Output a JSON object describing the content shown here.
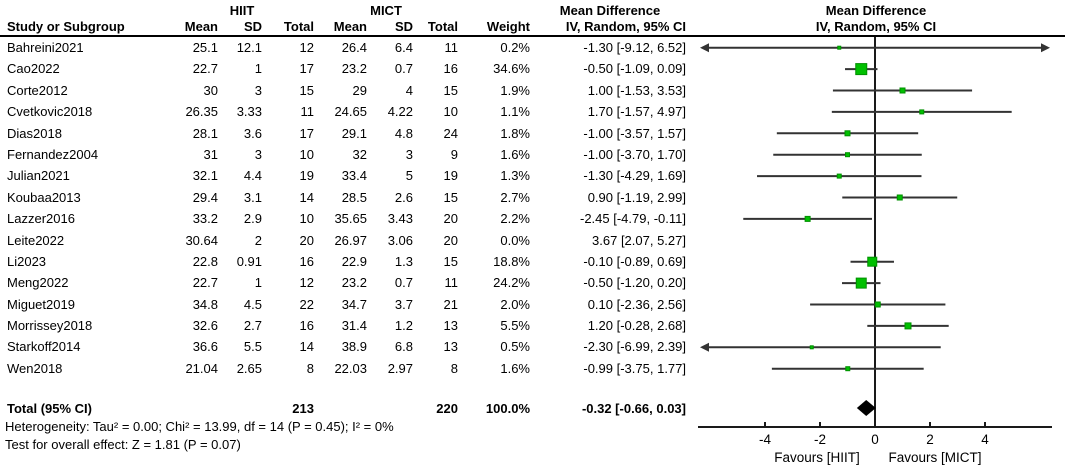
{
  "header": {
    "group1": "HIIT",
    "group2": "MICT",
    "effect_title": "Mean Difference",
    "effect_subtitle": "IV, Random, 95% CI",
    "plot_title": "Mean Difference",
    "plot_subtitle": "IV, Random, 95% CI",
    "columns": {
      "study": "Study or Subgroup",
      "mean1": "Mean",
      "sd1": "SD",
      "total1": "Total",
      "mean2": "Mean",
      "sd2": "SD",
      "total2": "Total",
      "weight": "Weight",
      "ci": "IV, Random, 95% CI"
    }
  },
  "total_row": {
    "label": "Total (95% CI)",
    "total1": "213",
    "total2": "220",
    "weight": "100.0%",
    "ci_text": "-0.32 [-0.66, 0.03]"
  },
  "footer": {
    "heterogeneity": "Heterogeneity: Tau² = 0.00; Chi² = 13.99, df = 14 (P = 0.45); I² = 0%",
    "overall_effect": "Test for overall effect: Z = 1.81 (P = 0.07)"
  },
  "chart_data": {
    "type": "forest",
    "title": "Mean Difference",
    "subtitle": "IV, Random, 95% CI",
    "xlabel_left": "Favours [HIIT]",
    "xlabel_right": "Favours [MICT]",
    "axis": {
      "ticks": [
        -4,
        -2,
        0,
        2,
        4
      ],
      "visible_range": [
        -6.36,
        6.36
      ],
      "grid": false
    },
    "colors": {
      "marker": "#00c000",
      "marker_edge": "#009000",
      "line": "#333333",
      "diamond": "#000000",
      "axis": "#1a1a1a"
    },
    "studies": [
      {
        "label": "Bahreini2021",
        "mean1": "25.1",
        "sd1": "12.1",
        "total1": "12",
        "mean2": "26.4",
        "sd2": "6.4",
        "total2": "11",
        "weight": "0.2%",
        "ci_text": "-1.30 [-9.12, 6.52]",
        "md": -1.3,
        "lo": -9.12,
        "hi": 6.52,
        "size": 3,
        "plotted": true
      },
      {
        "label": "Cao2022",
        "mean1": "22.7",
        "sd1": "1",
        "total1": "17",
        "mean2": "23.2",
        "sd2": "0.7",
        "total2": "16",
        "weight": "34.6%",
        "ci_text": "-0.50 [-1.09, 0.09]",
        "md": -0.5,
        "lo": -1.09,
        "hi": 0.09,
        "size": 11,
        "plotted": true
      },
      {
        "label": "Corte2012",
        "mean1": "30",
        "sd1": "3",
        "total1": "15",
        "mean2": "29",
        "sd2": "4",
        "total2": "15",
        "weight": "1.9%",
        "ci_text": "1.00 [-1.53, 3.53]",
        "md": 1.0,
        "lo": -1.53,
        "hi": 3.53,
        "size": 5,
        "plotted": true
      },
      {
        "label": "Cvetkovic2018",
        "mean1": "26.35",
        "sd1": "3.33",
        "total1": "11",
        "mean2": "24.65",
        "sd2": "4.22",
        "total2": "10",
        "weight": "1.1%",
        "ci_text": "1.70 [-1.57, 4.97]",
        "md": 1.7,
        "lo": -1.57,
        "hi": 4.97,
        "size": 4,
        "plotted": true
      },
      {
        "label": "Dias2018",
        "mean1": "28.1",
        "sd1": "3.6",
        "total1": "17",
        "mean2": "29.1",
        "sd2": "4.8",
        "total2": "24",
        "weight": "1.8%",
        "ci_text": "-1.00 [-3.57, 1.57]",
        "md": -1.0,
        "lo": -3.57,
        "hi": 1.57,
        "size": 5,
        "plotted": true
      },
      {
        "label": "Fernandez2004",
        "mean1": "31",
        "sd1": "3",
        "total1": "10",
        "mean2": "32",
        "sd2": "3",
        "total2": "9",
        "weight": "1.6%",
        "ci_text": "-1.00 [-3.70, 1.70]",
        "md": -1.0,
        "lo": -3.7,
        "hi": 1.7,
        "size": 4,
        "plotted": true
      },
      {
        "label": "Julian2021",
        "mean1": "32.1",
        "sd1": "4.4",
        "total1": "19",
        "mean2": "33.4",
        "sd2": "5",
        "total2": "19",
        "weight": "1.3%",
        "ci_text": "-1.30 [-4.29, 1.69]",
        "md": -1.3,
        "lo": -4.29,
        "hi": 1.69,
        "size": 4,
        "plotted": true
      },
      {
        "label": "Koubaa2013",
        "mean1": "29.4",
        "sd1": "3.1",
        "total1": "14",
        "mean2": "28.5",
        "sd2": "2.6",
        "total2": "15",
        "weight": "2.7%",
        "ci_text": "0.90 [-1.19, 2.99]",
        "md": 0.9,
        "lo": -1.19,
        "hi": 2.99,
        "size": 5,
        "plotted": true
      },
      {
        "label": "Lazzer2016",
        "mean1": "33.2",
        "sd1": "2.9",
        "total1": "10",
        "mean2": "35.65",
        "sd2": "3.43",
        "total2": "20",
        "weight": "2.2%",
        "ci_text": "-2.45 [-4.79, -0.11]",
        "md": -2.45,
        "lo": -4.79,
        "hi": -0.11,
        "size": 5,
        "plotted": true
      },
      {
        "label": "Leite2022",
        "mean1": "30.64",
        "sd1": "2",
        "total1": "20",
        "mean2": "26.97",
        "sd2": "3.06",
        "total2": "20",
        "weight": "0.0%",
        "ci_text": "3.67 [2.07, 5.27]",
        "md": 3.67,
        "lo": 2.07,
        "hi": 5.27,
        "size": 0,
        "plotted": false
      },
      {
        "label": "Li2023",
        "mean1": "22.8",
        "sd1": "0.91",
        "total1": "16",
        "mean2": "22.9",
        "sd2": "1.3",
        "total2": "15",
        "weight": "18.8%",
        "ci_text": "-0.10 [-0.89, 0.69]",
        "md": -0.1,
        "lo": -0.89,
        "hi": 0.69,
        "size": 9,
        "plotted": true
      },
      {
        "label": "Meng2022",
        "mean1": "22.7",
        "sd1": "1",
        "total1": "12",
        "mean2": "23.2",
        "sd2": "0.7",
        "total2": "11",
        "weight": "24.2%",
        "ci_text": "-0.50 [-1.20, 0.20]",
        "md": -0.5,
        "lo": -1.2,
        "hi": 0.2,
        "size": 10,
        "plotted": true
      },
      {
        "label": "Miguet2019",
        "mean1": "34.8",
        "sd1": "4.5",
        "total1": "22",
        "mean2": "34.7",
        "sd2": "3.7",
        "total2": "21",
        "weight": "2.0%",
        "ci_text": "0.10 [-2.36, 2.56]",
        "md": 0.1,
        "lo": -2.36,
        "hi": 2.56,
        "size": 5,
        "plotted": true
      },
      {
        "label": "Morrissey2018",
        "mean1": "32.6",
        "sd1": "2.7",
        "total1": "16",
        "mean2": "31.4",
        "sd2": "1.2",
        "total2": "13",
        "weight": "5.5%",
        "ci_text": "1.20 [-0.28, 2.68]",
        "md": 1.2,
        "lo": -0.28,
        "hi": 2.68,
        "size": 6,
        "plotted": true
      },
      {
        "label": "Starkoff2014",
        "mean1": "36.6",
        "sd1": "5.5",
        "total1": "14",
        "mean2": "38.9",
        "sd2": "6.8",
        "total2": "13",
        "weight": "0.5%",
        "ci_text": "-2.30 [-6.99, 2.39]",
        "md": -2.3,
        "lo": -6.99,
        "hi": 2.39,
        "size": 3,
        "plotted": true
      },
      {
        "label": "Wen2018",
        "mean1": "21.04",
        "sd1": "2.65",
        "total1": "8",
        "mean2": "22.03",
        "sd2": "2.97",
        "total2": "8",
        "weight": "1.6%",
        "ci_text": "-0.99 [-3.75, 1.77]",
        "md": -0.99,
        "lo": -3.75,
        "hi": 1.77,
        "size": 4,
        "plotted": true
      }
    ],
    "total": {
      "md": -0.32,
      "lo": -0.66,
      "hi": 0.03
    }
  }
}
